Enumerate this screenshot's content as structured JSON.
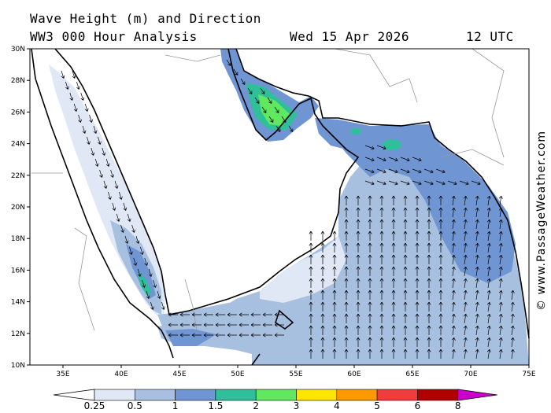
{
  "title": {
    "line1": "Wave Height (m) and Direction",
    "line2": "WW3 000 Hour Analysis",
    "valid_time": "Wed 15 Apr 2026",
    "utc": "12 UTC"
  },
  "credit": "© www.PassageWeather.com",
  "axes": {
    "lat_ticks": [
      "30N",
      "28N",
      "26N",
      "24N",
      "22N",
      "20N",
      "18N",
      "16N",
      "14N",
      "12N",
      "10N"
    ],
    "lon_ticks": [
      "35E",
      "40E",
      "45E",
      "50E",
      "55E",
      "60E",
      "65E",
      "70E",
      "75E"
    ]
  },
  "legend": {
    "labels": [
      "0.25",
      "0.5",
      "1",
      "1.5",
      "2",
      "3",
      "4",
      "5",
      "6",
      "8"
    ],
    "colors": [
      "#ffffff",
      "#dfe8f4",
      "#a8c0e0",
      "#6f95d3",
      "#2fbf9a",
      "#5fe860",
      "#ffe600",
      "#ff9900",
      "#f03c3c",
      "#b00000",
      "#cc00cc"
    ]
  },
  "colors": {
    "calm": "#dfe8f4",
    "light": "#a8c0e0",
    "moderate": "#6f95d3",
    "teal": "#2fbf9a",
    "green": "#5fe860"
  }
}
